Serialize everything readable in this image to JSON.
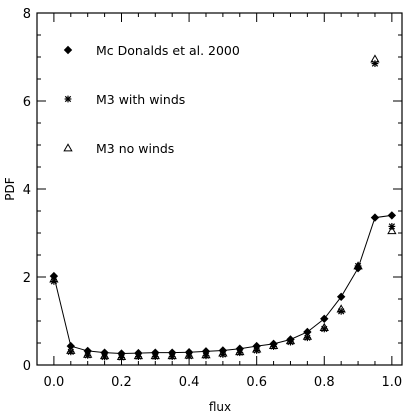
{
  "chart_data": {
    "type": "scatter",
    "xlabel": "flux",
    "ylabel": "PDF",
    "xlim": [
      -0.05,
      1.03
    ],
    "ylim": [
      0,
      8
    ],
    "xticks": [
      "0.0",
      "0.2",
      "0.4",
      "0.6",
      "0.8",
      "1.0"
    ],
    "xtick_values": [
      0.0,
      0.2,
      0.4,
      0.6,
      0.8,
      1.0
    ],
    "yticks": [
      "0",
      "2",
      "4",
      "6",
      "8"
    ],
    "ytick_values": [
      0,
      2,
      4,
      6,
      8
    ],
    "grid": false,
    "legend_position": "upper-left",
    "x": [
      0.0,
      0.05,
      0.1,
      0.15,
      0.2,
      0.25,
      0.3,
      0.35,
      0.4,
      0.45,
      0.5,
      0.55,
      0.6,
      0.65,
      0.7,
      0.75,
      0.8,
      0.85,
      0.9,
      0.95,
      1.0
    ],
    "series": [
      {
        "name": "Mc Donalds et al. 2000",
        "marker": "diamond",
        "connected": true,
        "values": [
          2.02,
          0.43,
          0.32,
          0.28,
          0.26,
          0.27,
          0.28,
          0.28,
          0.29,
          0.31,
          0.33,
          0.37,
          0.43,
          0.48,
          0.58,
          0.75,
          1.05,
          1.55,
          2.2,
          3.35,
          3.4
        ]
      },
      {
        "name": "M3 with winds",
        "marker": "asterisk",
        "connected": false,
        "values": [
          1.9,
          0.3,
          0.22,
          0.18,
          0.17,
          0.19,
          0.19,
          0.19,
          0.2,
          0.21,
          0.24,
          0.28,
          0.33,
          0.42,
          0.52,
          0.62,
          0.82,
          1.22,
          2.25,
          6.85,
          3.15
        ]
      },
      {
        "name": "M3 no winds",
        "marker": "triangle",
        "connected": false,
        "values": [
          1.95,
          0.33,
          0.24,
          0.21,
          0.19,
          0.21,
          0.21,
          0.21,
          0.22,
          0.23,
          0.27,
          0.3,
          0.36,
          0.44,
          0.55,
          0.65,
          0.85,
          1.27,
          2.25,
          6.95,
          3.05
        ]
      }
    ]
  }
}
